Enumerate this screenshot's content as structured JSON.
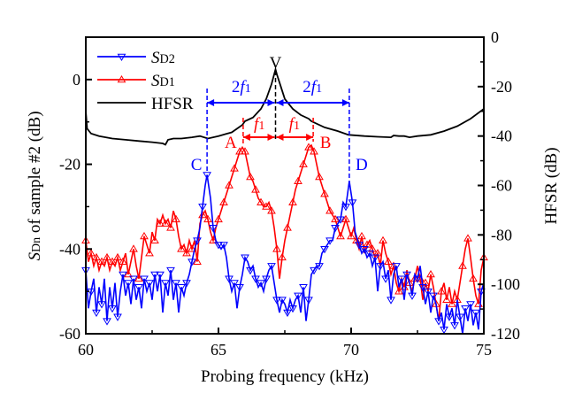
{
  "chart_data": {
    "type": "line",
    "xlabel": "Probing frequency (kHz)",
    "ylabel": "SDn of sample #2 (dB)",
    "ylabel_right": "HFSR (dB)",
    "xlim": [
      60,
      75
    ],
    "ylim": [
      -60,
      10
    ],
    "ylim_right": [
      -120,
      0
    ],
    "xticks": [
      "60",
      "65",
      "70",
      "75"
    ],
    "yticks": [
      "0",
      "-20",
      "-40",
      "-60"
    ],
    "yticks_right": [
      "0",
      "-20",
      "-40",
      "-60",
      "-80",
      "-100",
      "-120"
    ],
    "grid": false,
    "legend": "top-left",
    "colors": {
      "SD2": "#0000ff",
      "SD1": "#ff0000",
      "HFSR": "#000000"
    },
    "annotations": {
      "V": "V",
      "A": "A",
      "B": "B",
      "C": "C",
      "D": "D",
      "two_f1": "2f1",
      "f1": "f1"
    },
    "series": [
      {
        "name": "SD2",
        "axis": "left",
        "marker": "triangle-down",
        "color": "#0000ff",
        "x": [
          60.0,
          60.1,
          60.2,
          60.3,
          60.4,
          60.5,
          60.6,
          60.7,
          60.8,
          60.9,
          61.0,
          61.1,
          61.2,
          61.3,
          61.4,
          61.5,
          61.6,
          61.7,
          61.8,
          61.9,
          62.0,
          62.1,
          62.2,
          62.3,
          62.4,
          62.5,
          62.6,
          62.7,
          62.8,
          62.9,
          63.0,
          63.1,
          63.2,
          63.3,
          63.4,
          63.5,
          63.6,
          63.7,
          63.8,
          63.9,
          64.0,
          64.1,
          64.2,
          64.3,
          64.4,
          64.5,
          64.57,
          64.7,
          64.8,
          64.9,
          65.0,
          65.1,
          65.2,
          65.3,
          65.4,
          65.5,
          65.6,
          65.7,
          65.8,
          65.9,
          66.0,
          66.1,
          66.2,
          66.3,
          66.4,
          66.5,
          66.6,
          66.7,
          66.8,
          66.9,
          67.0,
          67.1,
          67.2,
          67.3,
          67.4,
          67.5,
          67.6,
          67.7,
          67.8,
          67.9,
          68.0,
          68.1,
          68.2,
          68.3,
          68.4,
          68.5,
          68.6,
          68.7,
          68.8,
          68.9,
          69.0,
          69.1,
          69.2,
          69.3,
          69.4,
          69.5,
          69.6,
          69.7,
          69.8,
          69.93,
          70.05,
          70.15,
          70.3,
          70.4,
          70.5,
          70.6,
          70.7,
          70.8,
          70.9,
          71.0,
          71.1,
          71.2,
          71.3,
          71.4,
          71.5,
          71.6,
          71.7,
          71.8,
          71.9,
          72.0,
          72.1,
          72.2,
          72.3,
          72.4,
          72.5,
          72.6,
          72.7,
          72.8,
          72.9,
          73.0,
          73.1,
          73.2,
          73.3,
          73.4,
          73.5,
          73.6,
          73.7,
          73.8,
          73.9,
          74.0,
          74.1,
          74.2,
          74.3,
          74.4,
          74.5,
          74.6,
          74.7,
          74.8,
          74.9,
          75.0
        ],
        "y": [
          -45,
          -54,
          -50,
          -47,
          -55,
          -49,
          -53,
          -47,
          -57,
          -49,
          -54,
          -48,
          -56,
          -50,
          -46,
          -51,
          -48,
          -53,
          -47,
          -52,
          -49,
          -54,
          -47,
          -50,
          -48,
          -52,
          -46,
          -50,
          -46,
          -55,
          -48,
          -51,
          -45,
          -52,
          -48,
          -55,
          -49,
          -51,
          -48,
          -46,
          -43,
          -40,
          -38,
          -35,
          -30,
          -25,
          -22.5,
          -28,
          -35,
          -38,
          -39,
          -40,
          -39,
          -42,
          -47,
          -50,
          -48,
          -54,
          -49,
          -46,
          -42,
          -43,
          -45,
          -44,
          -47,
          -49,
          -48,
          -50,
          -47,
          -45,
          -44,
          -48,
          -52,
          -55,
          -52,
          -53,
          -55,
          -52,
          -54,
          -52,
          -51,
          -55,
          -49,
          -57,
          -52,
          -46,
          -45,
          -44,
          -44,
          -41,
          -40,
          -39,
          -38,
          -38,
          -35,
          -34,
          -33,
          -29,
          -30,
          -24,
          -29,
          -36,
          -39,
          -41,
          -40,
          -42,
          -41,
          -44,
          -42,
          -50,
          -44,
          -43,
          -47,
          -45,
          -52,
          -46,
          -44,
          -49,
          -47,
          -52,
          -46,
          -48,
          -51,
          -46,
          -47,
          -44,
          -49,
          -53,
          -50,
          -55,
          -51,
          -53,
          -57,
          -55,
          -59,
          -53,
          -56,
          -54,
          -58,
          -52,
          -56,
          -60,
          -54,
          -57,
          -53,
          -58,
          -55,
          -59,
          -50,
          -48
        ]
      },
      {
        "name": "SD1",
        "axis": "left",
        "marker": "triangle-up",
        "color": "#ff0000",
        "x": [
          60.0,
          60.1,
          60.2,
          60.3,
          60.4,
          60.5,
          60.6,
          60.7,
          60.8,
          60.9,
          61.0,
          61.1,
          61.2,
          61.3,
          61.4,
          61.5,
          61.6,
          61.7,
          61.8,
          61.9,
          62.0,
          62.1,
          62.2,
          62.3,
          62.4,
          62.5,
          62.6,
          62.7,
          62.8,
          62.9,
          63.0,
          63.1,
          63.2,
          63.3,
          63.4,
          63.5,
          63.6,
          63.7,
          63.8,
          63.9,
          64.0,
          64.1,
          64.2,
          64.3,
          64.4,
          64.5,
          64.6,
          64.7,
          64.8,
          64.9,
          65.0,
          65.1,
          65.2,
          65.3,
          65.4,
          65.5,
          65.6,
          65.7,
          65.8,
          65.9,
          66.0,
          66.1,
          66.2,
          66.3,
          66.4,
          66.5,
          66.6,
          66.7,
          66.8,
          66.9,
          67.0,
          67.1,
          67.2,
          67.3,
          67.4,
          67.5,
          67.6,
          67.7,
          67.8,
          67.9,
          68.0,
          68.1,
          68.2,
          68.3,
          68.4,
          68.5,
          68.6,
          68.7,
          68.8,
          68.9,
          69.0,
          69.1,
          69.2,
          69.3,
          69.4,
          69.5,
          69.6,
          69.7,
          69.8,
          69.9,
          70.0,
          70.1,
          70.2,
          70.3,
          70.4,
          70.5,
          70.6,
          70.7,
          70.8,
          70.9,
          71.0,
          71.1,
          71.2,
          71.3,
          71.4,
          71.5,
          71.6,
          71.7,
          71.8,
          71.9,
          72.0,
          72.1,
          72.2,
          72.3,
          72.4,
          72.5,
          72.6,
          72.7,
          72.8,
          72.9,
          73.0,
          73.1,
          73.2,
          73.3,
          73.4,
          73.5,
          73.6,
          73.7,
          73.8,
          73.9,
          74.0,
          74.1,
          74.2,
          74.3,
          74.4,
          74.5,
          74.6,
          74.7,
          74.8,
          74.9,
          75.0
        ],
        "y": [
          -38,
          -43,
          -41,
          -44,
          -42,
          -45,
          -43,
          -44,
          -42,
          -45,
          -43,
          -44,
          -42,
          -45,
          -43,
          -41,
          -46,
          -43,
          -40,
          -44,
          -47,
          -42,
          -37,
          -39,
          -41,
          -36,
          -38,
          -33,
          -34,
          -32,
          -34,
          -33,
          -35,
          -31,
          -33,
          -37,
          -40,
          -39,
          -41,
          -38,
          -40,
          -38,
          -43,
          -34,
          -32,
          -31,
          -33,
          -36,
          -38,
          -35,
          -33,
          -31,
          -29,
          -27,
          -25,
          -23,
          -21,
          -19,
          -17,
          -16,
          -17,
          -20,
          -23,
          -24,
          -26,
          -28,
          -29,
          -30,
          -30,
          -29,
          -31,
          -35,
          -40,
          -47,
          -42,
          -38,
          -35,
          -32,
          -29,
          -26,
          -24,
          -22,
          -20,
          -18,
          -16,
          -15.5,
          -17,
          -20,
          -23,
          -25,
          -27,
          -29,
          -31,
          -32,
          -33,
          -35,
          -37,
          -35,
          -33,
          -35,
          -37,
          -35,
          -38,
          -40,
          -37,
          -41,
          -39,
          -38,
          -40,
          -42,
          -41,
          -44,
          -38,
          -41,
          -43,
          -46,
          -44,
          -48,
          -50,
          -47,
          -49,
          -45,
          -48,
          -50,
          -47,
          -44,
          -47,
          -52,
          -48,
          -50,
          -46,
          -49,
          -53,
          -57,
          -50,
          -48,
          -52,
          -49,
          -53,
          -50,
          -52,
          -48,
          -44,
          -40,
          -37.5,
          -42,
          -47,
          -51,
          -53,
          -45,
          -42
        ]
      },
      {
        "name": "HFSR",
        "axis": "right",
        "marker": "none",
        "color": "#000000",
        "x": [
          60.0,
          60.05,
          60.2,
          60.5,
          61.0,
          61.5,
          62.0,
          62.5,
          62.9,
          63.0,
          63.1,
          63.3,
          63.6,
          64.0,
          64.3,
          64.6,
          65.0,
          65.5,
          65.9,
          66.0,
          66.3,
          66.6,
          66.8,
          67.0,
          67.1,
          67.15,
          67.2,
          67.35,
          67.5,
          67.8,
          68.1,
          68.4,
          68.5,
          69.0,
          69.5,
          69.9,
          70.5,
          71.0,
          71.5,
          71.6,
          71.8,
          72.0,
          72.2,
          72.5,
          73.0,
          73.5,
          74.0,
          74.5,
          75.0
        ],
        "y": [
          -30,
          -37,
          -39,
          -40,
          -41,
          -41.5,
          -42,
          -42.5,
          -43,
          -43.5,
          -41.5,
          -41,
          -41,
          -40.5,
          -40,
          -41,
          -40,
          -38.5,
          -35.5,
          -34,
          -32.5,
          -29,
          -25,
          -19,
          -15,
          -13,
          -15,
          -20,
          -25,
          -29,
          -31.5,
          -33,
          -34,
          -36.5,
          -38,
          -39.5,
          -40,
          -40.3,
          -40.5,
          -39.8,
          -40,
          -40,
          -40.5,
          -40,
          -39.5,
          -38,
          -36,
          -33,
          -29
        ]
      }
    ]
  }
}
